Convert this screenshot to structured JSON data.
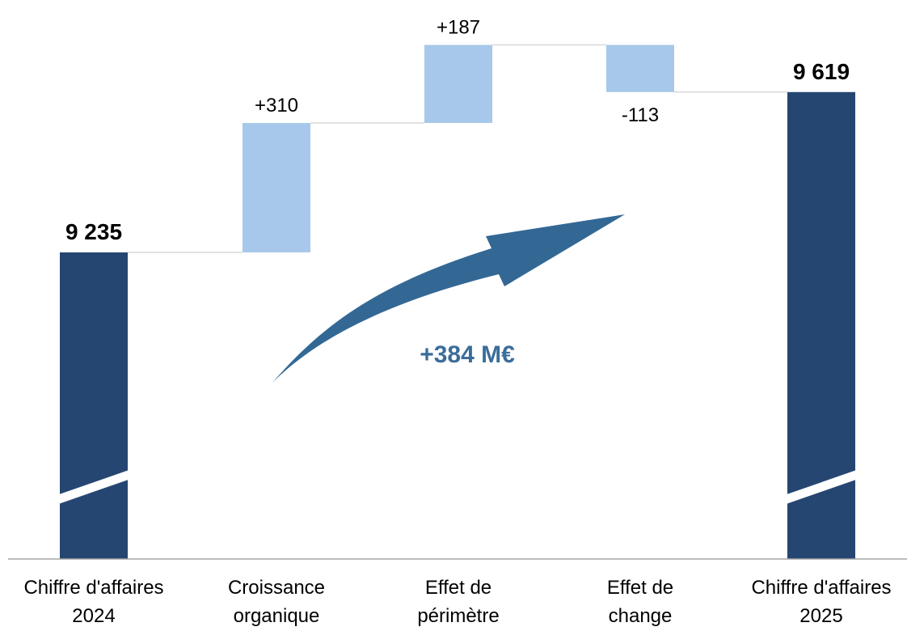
{
  "chart_data": {
    "type": "waterfall",
    "axis_break": true,
    "categories": [
      [
        "Chiffre d'affaires",
        "2024"
      ],
      [
        "Croissance",
        "organique"
      ],
      [
        "Effet de",
        "périmètre"
      ],
      [
        "Effet de",
        "change"
      ],
      [
        "Chiffre d'affaires",
        "2025"
      ]
    ],
    "bars": [
      {
        "kind": "total",
        "value": 9235,
        "label": "9 235"
      },
      {
        "kind": "delta",
        "value": 310,
        "label": "+310"
      },
      {
        "kind": "delta",
        "value": 187,
        "label": "+187"
      },
      {
        "kind": "delta",
        "value": -113,
        "label": "-113"
      },
      {
        "kind": "total",
        "value": 9619,
        "label": "9 619"
      }
    ],
    "annotation": "+384 M€",
    "colors": {
      "total": "#264672",
      "delta": "#a7c8ea",
      "arrow": "#336895",
      "annotation": "#3b6d99",
      "connector": "#d9d9d9",
      "axis": "#a6a6a6",
      "text": "#000000"
    }
  }
}
